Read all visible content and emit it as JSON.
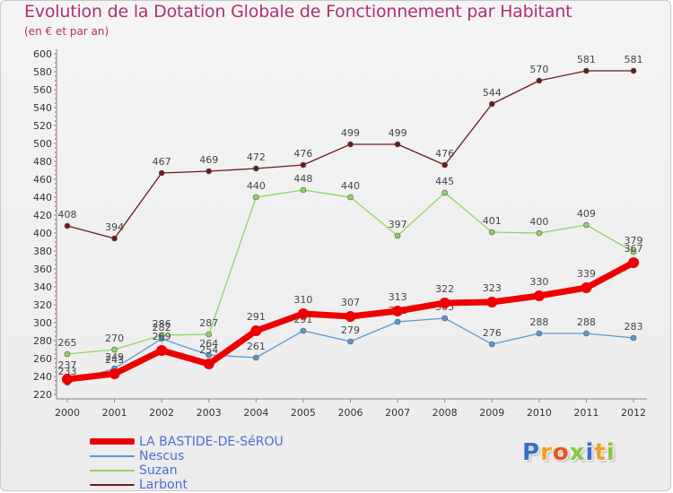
{
  "chart_data": {
    "type": "line",
    "title": "Evolution de la Dotation Globale de Fonctionnement par Habitant",
    "subtitle": "(en € et par an)",
    "xlabel": "",
    "ylabel": "",
    "x": [
      "2000",
      "2001",
      "2002",
      "2003",
      "2004",
      "2005",
      "2006",
      "2007",
      "2008",
      "2009",
      "2010",
      "2011",
      "2012"
    ],
    "ylim": [
      220,
      600
    ],
    "ytick_step": 20,
    "grid": false,
    "legend_position": "bottom-left",
    "series": [
      {
        "name": "Larbont",
        "color": "#6b1a1a",
        "values": [
          408,
          394,
          467,
          469,
          472,
          476,
          499,
          499,
          476,
          544,
          570,
          581,
          581
        ]
      },
      {
        "name": "Suzan",
        "color": "#8fd460",
        "values": [
          265,
          270,
          286,
          287,
          440,
          448,
          440,
          397,
          445,
          401,
          400,
          409,
          379
        ]
      },
      {
        "name": "Nescus",
        "color": "#5a98d0",
        "values": [
          233,
          249,
          282,
          264,
          261,
          291,
          279,
          301,
          305,
          276,
          288,
          288,
          283
        ]
      },
      {
        "name": "LA BASTIDE-DE-SéROU",
        "color": "#ee0000",
        "values": [
          237,
          243,
          269,
          254,
          291,
          310,
          307,
          313,
          322,
          323,
          330,
          339,
          367
        ]
      }
    ]
  },
  "legend": {
    "items": [
      {
        "label": "LA BASTIDE-DE-SéROU",
        "color": "#ee0000"
      },
      {
        "label": "Nescus",
        "color": "#5a98d0"
      },
      {
        "label": "Suzan",
        "color": "#8fd460"
      },
      {
        "label": "Larbont",
        "color": "#6b1a1a"
      }
    ]
  },
  "logo": {
    "letters": [
      "P",
      "r",
      "o",
      "x",
      "i",
      "t",
      "i"
    ],
    "colors": [
      "#3a6fc8",
      "#f2a024",
      "#e8561e",
      "#8cc63f",
      "#3a6fc8",
      "#f2a024",
      "#8cc63f"
    ]
  }
}
